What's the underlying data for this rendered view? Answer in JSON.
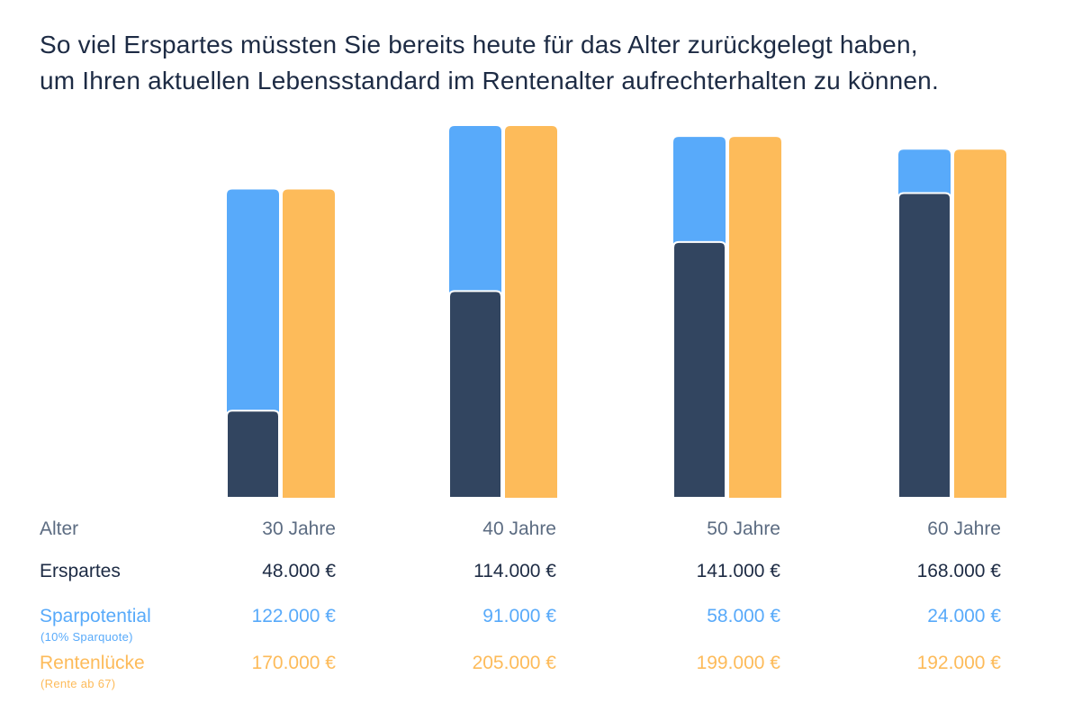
{
  "title_line1": "So viel Erspartes müssten Sie bereits heute für das Alter zurückgelegt haben,",
  "title_line2": "um Ihren aktuellen Lebensstandard im Rentenalter aufrechterhalten zu können.",
  "colors": {
    "erspartes": "#324560",
    "sparpotential": "#58aafa",
    "rentenluecke": "#fdbb5a",
    "alter_text": "#5c6c82",
    "title": "#1d2b44"
  },
  "table": {
    "alter_label": "Alter",
    "erspartes_label": "Erspartes",
    "sparpotential_label": "Sparpotential",
    "sparpotential_sub": "(10% Sparquote)",
    "rentenluecke_label": "Rentenlücke",
    "rentenluecke_sub": "(Rente ab 67)",
    "ages": [
      "30 Jahre",
      "40 Jahre",
      "50 Jahre",
      "60 Jahre"
    ],
    "erspartes": [
      "48.000 €",
      "114.000 €",
      "141.000 €",
      "168.000 €"
    ],
    "sparpotential": [
      "122.000 €",
      "91.000 €",
      "58.000 €",
      "24.000 €"
    ],
    "rentenluecke": [
      "170.000 €",
      "205.000 €",
      "199.000 €",
      "192.000 €"
    ]
  },
  "chart_data": {
    "type": "bar",
    "stacked_with_companion": true,
    "categories": [
      "30 Jahre",
      "40 Jahre",
      "50 Jahre",
      "60 Jahre"
    ],
    "series": [
      {
        "name": "Erspartes",
        "values": [
          48000,
          114000,
          141000,
          168000
        ],
        "stack": "left"
      },
      {
        "name": "Sparpotential",
        "values": [
          122000,
          91000,
          58000,
          24000
        ],
        "stack": "left"
      },
      {
        "name": "Rentenlücke",
        "values": [
          170000,
          205000,
          199000,
          192000
        ],
        "stack": "right"
      }
    ],
    "ylim": [
      0,
      205000
    ],
    "grid": false
  }
}
